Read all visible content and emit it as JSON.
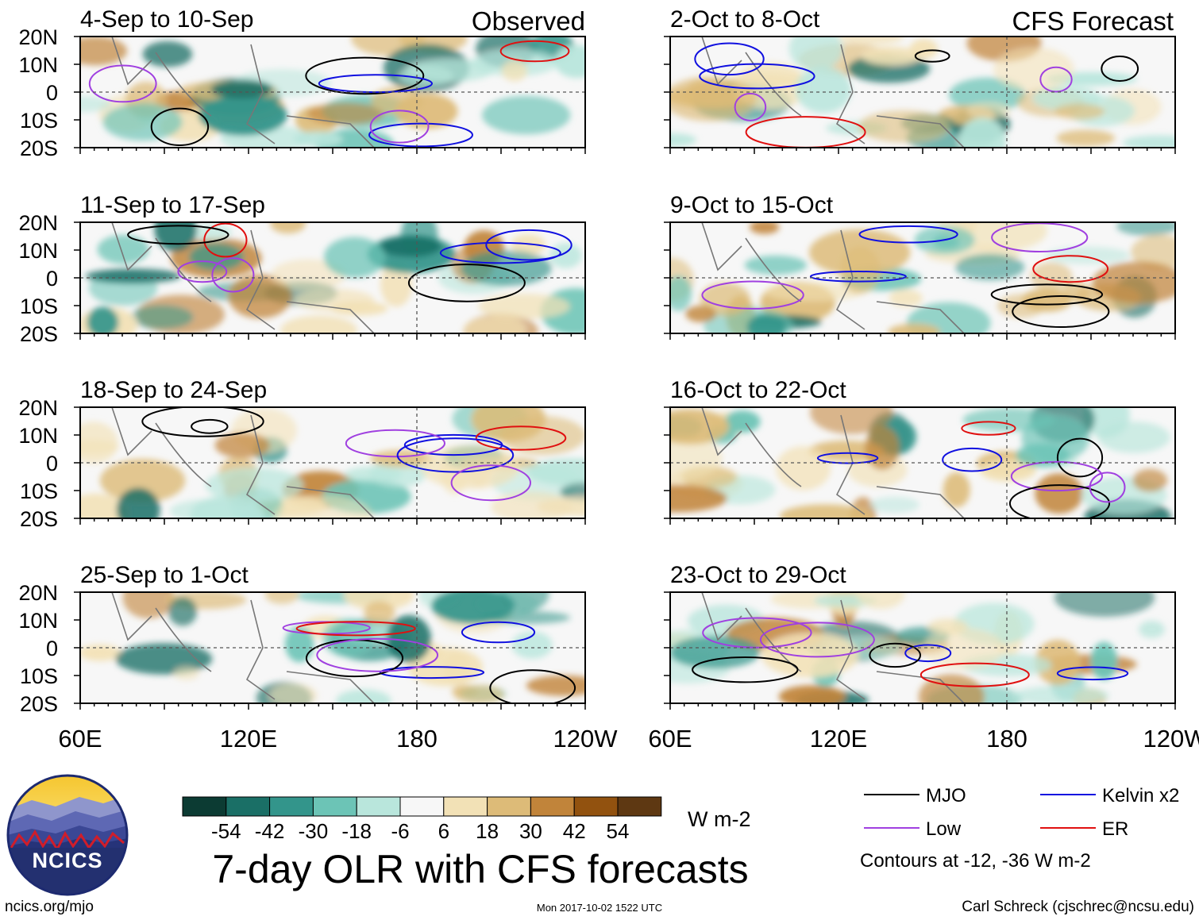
{
  "header": {
    "observed_label": "Observed",
    "forecast_label": "CFS Forecast"
  },
  "chart_data": {
    "type": "heatmap",
    "title": "7-day OLR with CFS forecasts",
    "units": "W m-2",
    "x_ticks": [
      "60E",
      "120E",
      "180",
      "120W"
    ],
    "y_ticks": [
      "20N",
      "10N",
      "0",
      "10S",
      "20S"
    ],
    "panels": [
      {
        "label": "4-Sep to 10-Sep",
        "source": "Observed"
      },
      {
        "label": "11-Sep to 17-Sep",
        "source": "Observed"
      },
      {
        "label": "18-Sep to 24-Sep",
        "source": "Observed"
      },
      {
        "label": "25-Sep to 1-Oct",
        "source": "Observed"
      },
      {
        "label": "2-Oct to 8-Oct",
        "source": "CFS Forecast"
      },
      {
        "label": "9-Oct to 15-Oct",
        "source": "CFS Forecast"
      },
      {
        "label": "16-Oct to 22-Oct",
        "source": "CFS Forecast"
      },
      {
        "label": "23-Oct to 29-Oct",
        "source": "CFS Forecast"
      }
    ],
    "colorbar": {
      "labels": [
        "-54",
        "-42",
        "-30",
        "-18",
        "-6",
        "6",
        "18",
        "30",
        "42",
        "54"
      ],
      "colors": [
        "#0c3b33",
        "#1a6f66",
        "#33958b",
        "#6cc4b6",
        "#b9e6dc",
        "#f7f7f7",
        "#f2e1b6",
        "#ddbb78",
        "#c1843a",
        "#92520f",
        "#5e3812"
      ]
    },
    "legend": [
      {
        "label": "MJO",
        "color": "#000000"
      },
      {
        "label": "Kelvin x2",
        "color": "#1010e0"
      },
      {
        "label": "Low",
        "color": "#a040e0"
      },
      {
        "label": "ER",
        "color": "#e01010"
      }
    ],
    "contour_note": "Contours at -12, -36 W m-2"
  },
  "footer": {
    "logo_text": "NCICS",
    "url": "ncics.org/mjo",
    "timestamp": "Mon 2017-10-02 1522 UTC",
    "credit": "Carl Schreck (cjschrec@ncsu.edu)"
  }
}
